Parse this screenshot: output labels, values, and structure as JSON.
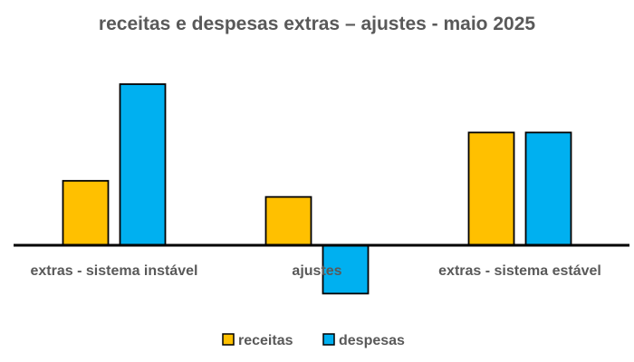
{
  "chart_data": {
    "type": "bar",
    "title": "receitas e despesas extras – ajustes - maio 2025",
    "categories": [
      "extras - sistema instável",
      "ajustes",
      "extras - sistema estável"
    ],
    "series": [
      {
        "name": "receitas",
        "color": "#FFC000",
        "values": [
          4,
          3,
          7
        ]
      },
      {
        "name": "despesas",
        "color": "#00B0F0",
        "values": [
          10,
          -3,
          7
        ]
      }
    ],
    "axis_color": "#000000",
    "grid": false,
    "legend_position": "bottom"
  }
}
